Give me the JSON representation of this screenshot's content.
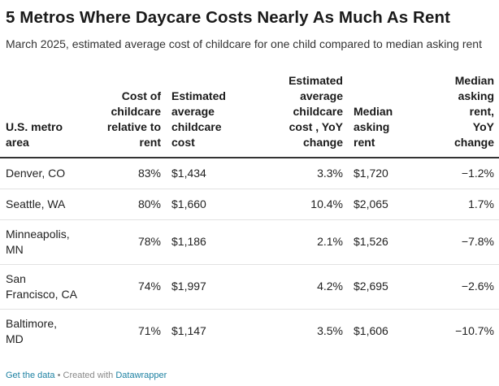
{
  "title": "5 Metros Where Daycare Costs Nearly As Much As Rent",
  "subtitle": "March 2025, estimated average cost of childcare for one child compared to median asking rent",
  "columns": [
    "U.S. metro area",
    "Cost of childcare relative to rent",
    "Estimated average childcare cost",
    "Estimated average childcare cost , YoY change",
    "Median asking rent",
    "Median asking rent, YoY change"
  ],
  "columns_display": [
    "U.S. metro\narea",
    "Cost of\nchildcare\nrelative to\nrent",
    "Estimated\naverage\nchildcare\ncost",
    "Estimated\naverage\nchildcare\ncost , YoY\nchange",
    "Median\nasking\nrent",
    "Median\nasking\nrent,\nYoY\nchange"
  ],
  "rows": [
    {
      "metro": "Denver, CO",
      "ratio": "83%",
      "childcare_cost": "$1,434",
      "childcare_yoy": "3.3%",
      "rent": "$1,720",
      "rent_yoy": "−1.2%"
    },
    {
      "metro": "Seattle, WA",
      "ratio": "80%",
      "childcare_cost": "$1,660",
      "childcare_yoy": "10.4%",
      "rent": "$2,065",
      "rent_yoy": "1.7%"
    },
    {
      "metro": "Minneapolis, MN",
      "ratio": "78%",
      "childcare_cost": "$1,186",
      "childcare_yoy": "2.1%",
      "rent": "$1,526",
      "rent_yoy": "−7.8%"
    },
    {
      "metro": "San Francisco, CA",
      "ratio": "74%",
      "childcare_cost": "$1,997",
      "childcare_yoy": "4.2%",
      "rent": "$2,695",
      "rent_yoy": "−2.6%"
    },
    {
      "metro": "Baltimore, MD",
      "ratio": "71%",
      "childcare_cost": "$1,147",
      "childcare_yoy": "3.5%",
      "rent": "$1,606",
      "rent_yoy": "−10.7%"
    }
  ],
  "footer": {
    "get_data": "Get the data",
    "separator": " • Created with ",
    "tool": "Datawrapper"
  },
  "colors": {
    "text": "#222222",
    "header_rule": "#333333",
    "row_rule": "#e2e2e2",
    "link": "#1d81a2",
    "footer_text": "#888888"
  },
  "chart_data": {
    "type": "table",
    "title": "5 Metros Where Daycare Costs Nearly As Much As Rent",
    "subtitle": "March 2025, estimated average cost of childcare for one child compared to median asking rent",
    "columns": [
      "U.S. metro area",
      "Cost of childcare relative to rent",
      "Estimated average childcare cost",
      "Estimated average childcare cost , YoY change",
      "Median asking rent",
      "Median asking rent, YoY change"
    ],
    "rows": [
      [
        "Denver, CO",
        0.83,
        1434,
        0.033,
        1720,
        -0.012
      ],
      [
        "Seattle, WA",
        0.8,
        1660,
        0.104,
        2065,
        0.017
      ],
      [
        "Minneapolis, MN",
        0.78,
        1186,
        0.021,
        1526,
        -0.078
      ],
      [
        "San Francisco, CA",
        0.74,
        1997,
        0.042,
        2695,
        -0.026
      ],
      [
        "Baltimore, MD",
        0.71,
        1147,
        0.035,
        1606,
        -0.107
      ]
    ]
  }
}
